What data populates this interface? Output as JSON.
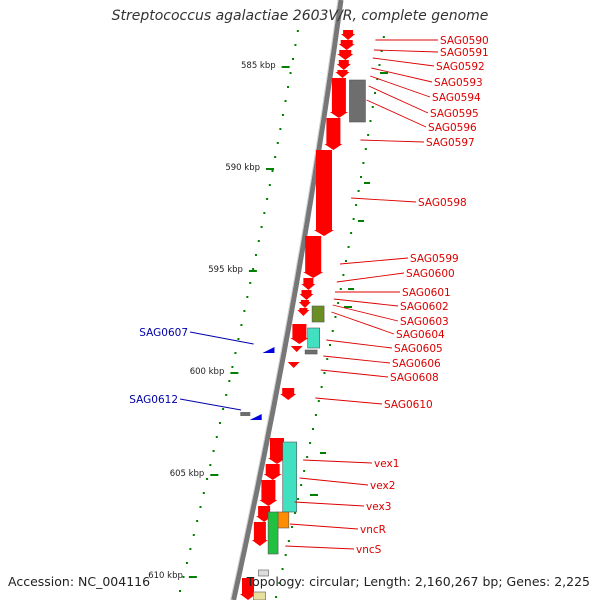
{
  "title": "Streptococcus agalactiae 2603V/R, complete genome",
  "accession": "Accession: NC_004116",
  "summary": "Topology: circular; Length: 2,160,267 bp; Genes: 2,225",
  "colors": {
    "backbone": "#777777",
    "forward_gene": "#ff0000",
    "reverse_gene": "#0000dd",
    "forward_label": "#dd0000",
    "reverse_label": "#0000aa",
    "gc_dots": "#008000",
    "gray_feature": "#6e6e6e",
    "olive_feature": "#6b8e23",
    "teal_feature": "#40e0c0",
    "green_feature": "#20c040",
    "orange_feature": "#ff8c00"
  },
  "ticks": [
    {
      "label": "585 kbp"
    },
    {
      "label": "590 kbp"
    },
    {
      "label": "595 kbp"
    },
    {
      "label": "600 kbp"
    },
    {
      "label": "605 kbp"
    },
    {
      "label": "610 kbp"
    }
  ],
  "forward_genes": [
    {
      "label": "SAG0590"
    },
    {
      "label": "SAG0591"
    },
    {
      "label": "SAG0592"
    },
    {
      "label": "SAG0593"
    },
    {
      "label": "SAG0594"
    },
    {
      "label": "SAG0595"
    },
    {
      "label": "SAG0596"
    },
    {
      "label": "SAG0597"
    },
    {
      "label": "SAG0598"
    },
    {
      "label": "SAG0599"
    },
    {
      "label": "SAG0600"
    },
    {
      "label": "SAG0601"
    },
    {
      "label": "SAG0602"
    },
    {
      "label": "SAG0603"
    },
    {
      "label": "SAG0604"
    },
    {
      "label": "SAG0605"
    },
    {
      "label": "SAG0606"
    },
    {
      "label": "SAG0608"
    },
    {
      "label": "SAG0610"
    },
    {
      "label": "vex1"
    },
    {
      "label": "vex2"
    },
    {
      "label": "vex3"
    },
    {
      "label": "vncR"
    },
    {
      "label": "vncS"
    }
  ],
  "reverse_genes": [
    {
      "label": "SAG0607"
    },
    {
      "label": "SAG0612"
    }
  ]
}
